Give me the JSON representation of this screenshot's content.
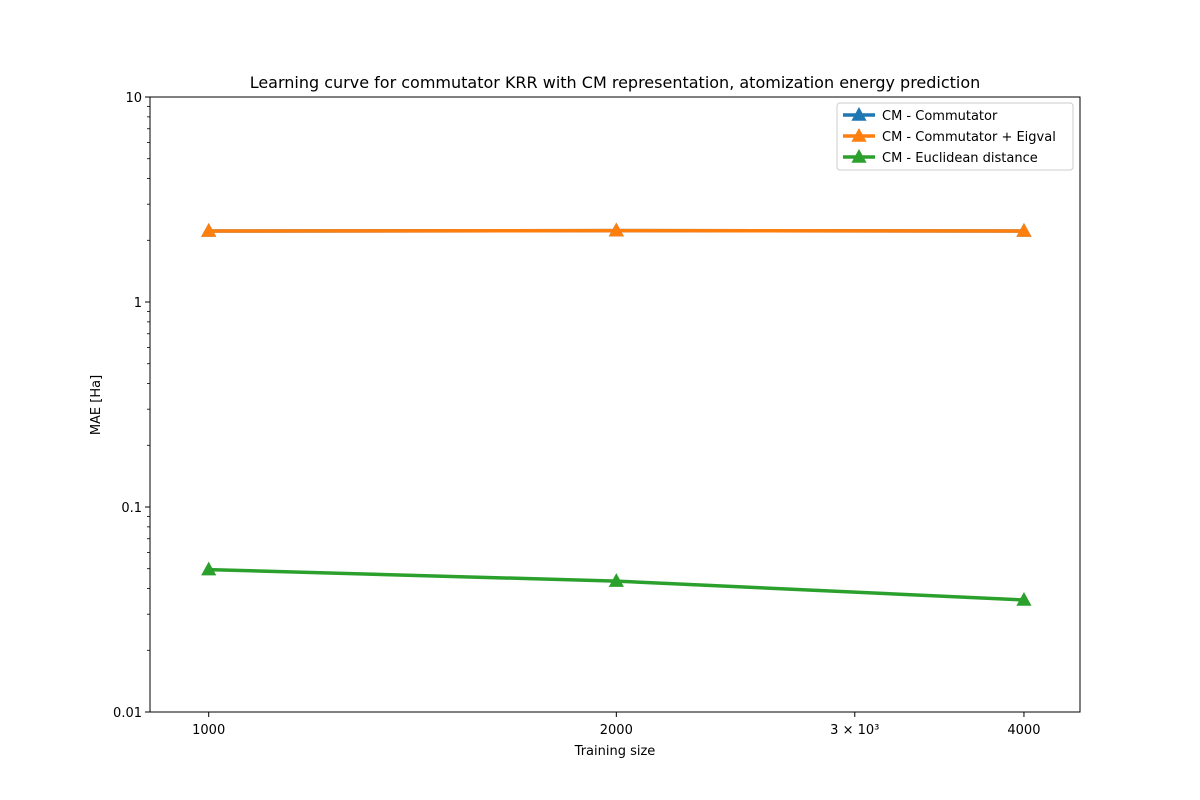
{
  "chart_data": {
    "type": "line",
    "title": "Learning curve for commutator KRR with CM representation, atomization energy prediction",
    "xlabel": "Training size",
    "ylabel": "MAE [Ha]",
    "x_scale": "log",
    "y_scale": "log",
    "xlim": [
      905,
      4400
    ],
    "ylim": [
      0.01,
      10
    ],
    "x_ticks": [
      {
        "value": 1000,
        "label": "1000"
      },
      {
        "value": 2000,
        "label": "2000"
      },
      {
        "value": 3000,
        "label": "3 × 10³"
      },
      {
        "value": 4000,
        "label": "4000"
      }
    ],
    "y_ticks": [
      {
        "value": 0.01,
        "label": "0.01"
      },
      {
        "value": 0.1,
        "label": "0.1"
      },
      {
        "value": 1,
        "label": "1"
      },
      {
        "value": 10,
        "label": "10"
      }
    ],
    "grid": false,
    "legend_position": "top-right",
    "x": [
      1000,
      2000,
      4000
    ],
    "series": [
      {
        "name": "CM - Commutator",
        "color": "#1f77b4",
        "marker": "triangle-up",
        "values": [
          2.22,
          2.23,
          2.22
        ]
      },
      {
        "name": "CM - Commutator + Eigval",
        "color": "#ff7f0e",
        "marker": "triangle-up",
        "values": [
          2.22,
          2.23,
          2.22
        ]
      },
      {
        "name": "CM - Euclidean distance",
        "color": "#2ca02c",
        "marker": "triangle-up",
        "values": [
          0.0495,
          0.0435,
          0.0352
        ]
      }
    ]
  }
}
